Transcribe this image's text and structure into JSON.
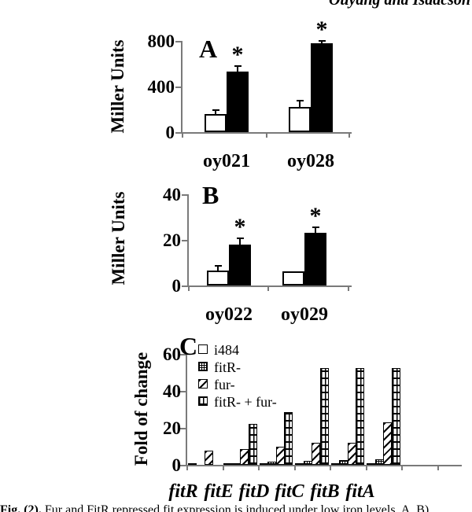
{
  "header": {
    "running_head": "Ouyang and Isaacson"
  },
  "caption": {
    "prefix": "Fig. (2).",
    "text": "Fur and FitR repressed fit expression is induced under low iron levels. A, B)"
  },
  "significance_marker": "*",
  "colors": {
    "bar_black": "#000000",
    "bar_white": "#ffffff",
    "axis_gray": "#7a7a7a",
    "text": "#000000",
    "background": "#ffffff"
  },
  "chart_data": [
    {
      "id": "A",
      "type": "bar",
      "panel_label": "A",
      "title": "",
      "xlabel": "",
      "ylabel": "Miller Units",
      "ylim": [
        0,
        800
      ],
      "yticks": [
        0,
        400,
        800
      ],
      "grid": false,
      "legend": false,
      "categories": [
        "oy021",
        "oy028"
      ],
      "series": [
        {
          "name": "white-bar",
          "pattern": "white",
          "values": [
            160,
            220
          ],
          "errors": [
            30,
            45
          ],
          "significant": [
            false,
            false
          ]
        },
        {
          "name": "black-bar",
          "pattern": "black",
          "values": [
            530,
            780
          ],
          "errors": [
            40,
            15
          ],
          "significant": [
            true,
            true
          ]
        }
      ]
    },
    {
      "id": "B",
      "type": "bar",
      "panel_label": "B",
      "title": "",
      "xlabel": "",
      "ylabel": "Miller Units",
      "ylim": [
        0,
        40
      ],
      "yticks": [
        0,
        20,
        40
      ],
      "grid": false,
      "legend": false,
      "categories": [
        "oy022",
        "oy029"
      ],
      "series": [
        {
          "name": "white-bar",
          "pattern": "white",
          "values": [
            6.7,
            6.3
          ],
          "errors": [
            1.8,
            0
          ],
          "significant": [
            false,
            false
          ]
        },
        {
          "name": "black-bar",
          "pattern": "black",
          "values": [
            18,
            23.2
          ],
          "errors": [
            2.3,
            2.1
          ],
          "significant": [
            true,
            true
          ]
        }
      ]
    },
    {
      "id": "C",
      "type": "bar",
      "panel_label": "C",
      "title": "",
      "xlabel": "",
      "ylabel": "Fold of change",
      "ylim": [
        0,
        60
      ],
      "yticks": [
        0,
        20,
        40,
        60
      ],
      "grid": false,
      "legend": true,
      "legend_position": "top-left-inside",
      "categories": [
        "fitR",
        "fitE",
        "fitD",
        "fitC",
        "fitB",
        "fitA"
      ],
      "categories_italic": true,
      "series": [
        {
          "name": "i484",
          "pattern": "white",
          "values": [
            1,
            1,
            1,
            1,
            1,
            1
          ],
          "errors": [
            0,
            0,
            0,
            0,
            0,
            0
          ],
          "significant": [
            false,
            false,
            false,
            false,
            false,
            false
          ]
        },
        {
          "name": "fitR-",
          "pattern": "dots",
          "values": [
            0,
            1,
            1.5,
            2,
            2.5,
            3
          ],
          "errors": [
            0,
            0,
            0,
            0,
            0,
            0
          ],
          "significant": [
            false,
            false,
            false,
            false,
            false,
            false
          ]
        },
        {
          "name": "fur-",
          "pattern": "diag",
          "values": [
            7.5,
            8.3,
            9.7,
            12,
            12,
            23
          ],
          "errors": [
            0,
            0,
            0,
            0,
            0,
            0
          ],
          "significant": [
            false,
            false,
            false,
            false,
            false,
            false
          ]
        },
        {
          "name": "fitR- + fur-",
          "pattern": "grid",
          "values": [
            0,
            22,
            28.5,
            52.5,
            52.5,
            52.5
          ],
          "errors": [
            0,
            0,
            0,
            0,
            0,
            0
          ],
          "significant": [
            false,
            false,
            false,
            false,
            false,
            false
          ]
        }
      ]
    }
  ]
}
